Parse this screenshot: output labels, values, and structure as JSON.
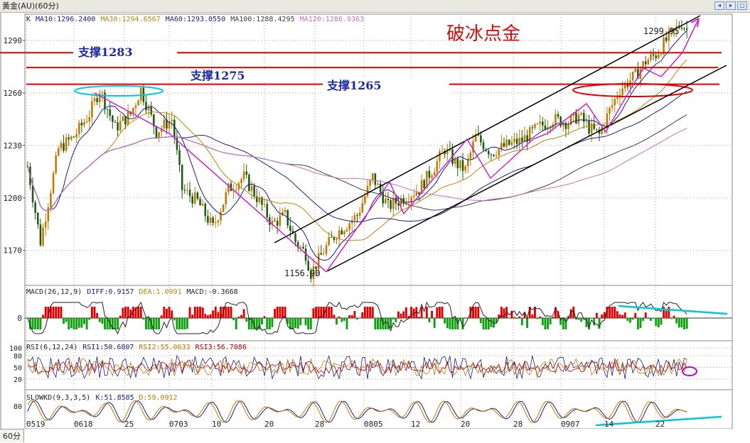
{
  "window": {
    "title": "黃金(AU)(60分)",
    "period_tab": "60分"
  },
  "colors": {
    "background": "#ffffff",
    "grid": "#a0a0a0",
    "candle_up": "#c07800",
    "candle_down": "#1a5a10",
    "ma10": "#1a1a80",
    "ma30": "#b8860b",
    "ma60": "#202080",
    "ma100": "#404040",
    "ma120": "#c070c0",
    "support": "#e00000",
    "channel": "#000000",
    "trend": "#cc22cc",
    "annot_blue": "#00c8d8",
    "macd_up": "#e00000",
    "macd_down": "#10a010"
  },
  "annotations": {
    "headline": "破冰点金",
    "support_1283": "支撑1283",
    "support_1275": "支撑1275",
    "support_1265": "支撑1265",
    "high_label": "1299.95",
    "low_label": "1156.90"
  },
  "chart_data": [
    {
      "type": "candlestick",
      "panel": "main",
      "legend_prefix": "K",
      "indicators": [
        {
          "name": "MA10",
          "value": "1296.2400"
        },
        {
          "name": "MA30",
          "value": "1294.6567"
        },
        {
          "name": "MA60",
          "value": "1293.0550"
        },
        {
          "name": "MA100",
          "value": "1288.4295"
        },
        {
          "name": "MA120",
          "value": "1286.9363"
        }
      ],
      "y_ticks": [
        "1290",
        "1260",
        "1230",
        "1200",
        "1170"
      ],
      "ylim": [
        1150,
        1305
      ],
      "x_ticks": [
        "0519",
        "0618",
        "25",
        "0703",
        "10",
        "20",
        "28",
        "0805",
        "12",
        "20",
        "28",
        "0907",
        "14",
        "22"
      ],
      "price_path": [
        [
          0,
          1218
        ],
        [
          5,
          1175
        ],
        [
          12,
          1228
        ],
        [
          18,
          1235
        ],
        [
          24,
          1248
        ],
        [
          28,
          1262
        ],
        [
          34,
          1240
        ],
        [
          40,
          1248
        ],
        [
          44,
          1262
        ],
        [
          50,
          1238
        ],
        [
          56,
          1245
        ],
        [
          60,
          1205
        ],
        [
          66,
          1198
        ],
        [
          72,
          1183
        ],
        [
          78,
          1205
        ],
        [
          84,
          1212
        ],
        [
          90,
          1198
        ],
        [
          95,
          1185
        ],
        [
          100,
          1190
        ],
        [
          104,
          1175
        ],
        [
          108,
          1168
        ],
        [
          110,
          1157
        ],
        [
          116,
          1172
        ],
        [
          120,
          1180
        ],
        [
          128,
          1190
        ],
        [
          134,
          1212
        ],
        [
          140,
          1195
        ],
        [
          146,
          1200
        ],
        [
          152,
          1205
        ],
        [
          158,
          1218
        ],
        [
          162,
          1228
        ],
        [
          166,
          1220
        ],
        [
          170,
          1216
        ],
        [
          174,
          1235
        ],
        [
          180,
          1226
        ],
        [
          186,
          1230
        ],
        [
          192,
          1233
        ],
        [
          198,
          1240
        ],
        [
          204,
          1245
        ],
        [
          210,
          1243
        ],
        [
          214,
          1247
        ],
        [
          218,
          1240
        ],
        [
          222,
          1236
        ],
        [
          226,
          1250
        ],
        [
          230,
          1262
        ],
        [
          236,
          1270
        ],
        [
          240,
          1278
        ],
        [
          244,
          1282
        ],
        [
          248,
          1290
        ],
        [
          252,
          1297
        ],
        [
          254,
          1300
        ],
        [
          256,
          1296
        ]
      ],
      "high": 1299.95,
      "low": 1156.9,
      "support_levels": [
        1283,
        1275,
        1265
      ]
    },
    {
      "type": "bar",
      "panel": "macd",
      "title": "MACD(26,12,9)",
      "values": [
        {
          "name": "DIFF",
          "value": "0.9157"
        },
        {
          "name": "DEA",
          "value": "1.0991"
        },
        {
          "name": "MACD",
          "value": "-0.3668"
        }
      ],
      "y_ticks": [
        "0"
      ]
    },
    {
      "type": "line",
      "panel": "rsi",
      "title": "RSI(6,12,24)",
      "values": [
        {
          "name": "RSI1",
          "value": "50.6807"
        },
        {
          "name": "RSI2",
          "value": "55.0633"
        },
        {
          "name": "RSI3",
          "value": "56.7086"
        }
      ],
      "y_ticks": [
        "100",
        "80",
        "50",
        "20"
      ]
    },
    {
      "type": "line",
      "panel": "kd",
      "title": "SLOWKD(9,3,3,5)",
      "values": [
        {
          "name": "K",
          "value": "51.8585"
        },
        {
          "name": "D",
          "value": "59.0912"
        }
      ],
      "y_ticks": [
        "80"
      ]
    }
  ]
}
